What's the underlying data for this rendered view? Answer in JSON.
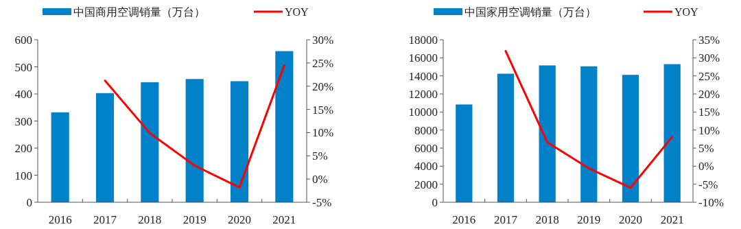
{
  "chart_data": [
    {
      "type": "bar",
      "categories": [
        "2016",
        "2017",
        "2018",
        "2019",
        "2020",
        "2021"
      ],
      "series": [
        {
          "name": "中国商用空调销量（万台）",
          "color": "#0081c8",
          "values": [
            332,
            403,
            443,
            455,
            447,
            558
          ]
        },
        {
          "name": "YOY",
          "type": "line",
          "axis": "y2",
          "color": "#ff0000",
          "values": [
            null,
            21.2,
            9.9,
            2.9,
            -1.8,
            24.5
          ]
        }
      ],
      "ylim": [
        0,
        600
      ],
      "yticks": [
        0,
        100,
        200,
        300,
        400,
        500,
        600
      ],
      "y2lim": [
        -5,
        30
      ],
      "y2ticks": [
        {
          "value": -5,
          "label": "-5%"
        },
        {
          "value": 0,
          "label": "0%"
        },
        {
          "value": 5,
          "label": "5%"
        },
        {
          "value": 10,
          "label": "10%"
        },
        {
          "value": 15,
          "label": "15%"
        },
        {
          "value": 20,
          "label": "20%"
        },
        {
          "value": 25,
          "label": "25%"
        },
        {
          "value": 30,
          "label": "30%"
        }
      ],
      "legend": "top",
      "grid": false,
      "marker": "none",
      "line_style": "solid"
    },
    {
      "type": "bar",
      "categories": [
        "2016",
        "2017",
        "2018",
        "2019",
        "2020",
        "2021"
      ],
      "series": [
        {
          "name": "中国家用空调销量（万台）",
          "color": "#0081c8",
          "values": [
            10830,
            14240,
            15160,
            15060,
            14110,
            15300
          ]
        },
        {
          "name": "YOY",
          "type": "line",
          "axis": "y2",
          "color": "#ff0000",
          "values": [
            null,
            31.9,
            6.6,
            -0.6,
            -6.0,
            8.1
          ]
        }
      ],
      "ylim": [
        0,
        18000
      ],
      "yticks": [
        0,
        2000,
        4000,
        6000,
        8000,
        10000,
        12000,
        14000,
        16000,
        18000
      ],
      "y2lim": [
        -10,
        35
      ],
      "y2ticks": [
        {
          "value": -10,
          "label": "-10%"
        },
        {
          "value": -5,
          "label": "-5%"
        },
        {
          "value": 0,
          "label": "0%"
        },
        {
          "value": 5,
          "label": "5%"
        },
        {
          "value": 10,
          "label": "10%"
        },
        {
          "value": 15,
          "label": "15%"
        },
        {
          "value": 20,
          "label": "20%"
        },
        {
          "value": 25,
          "label": "25%"
        },
        {
          "value": 30,
          "label": "30%"
        },
        {
          "value": 35,
          "label": "35%"
        }
      ],
      "legend": "top",
      "grid": false,
      "marker": "none",
      "line_style": "solid"
    }
  ]
}
